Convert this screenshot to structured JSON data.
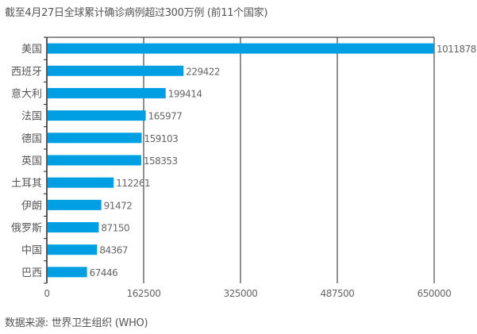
{
  "chart_data": {
    "type": "bar",
    "orientation": "horizontal",
    "title": "截至4月27日全球累计确诊病例超过300万例 (前11个国家)",
    "source": "数据来源: 世界卫生组织 (WHO)",
    "categories": [
      "美国",
      "西班牙",
      "意大利",
      "法国",
      "德国",
      "英国",
      "土耳其",
      "伊朗",
      "俄罗斯",
      "中国",
      "巴西"
    ],
    "values": [
      1011878,
      229422,
      199414,
      165977,
      159103,
      158353,
      112261,
      91472,
      87150,
      84367,
      67446
    ],
    "value_labels": [
      "1011878",
      "229422",
      "199414",
      "165977",
      "159103",
      "158353",
      "112261",
      "91472",
      "87150",
      "84367",
      "67446"
    ],
    "xlim": [
      0,
      650000
    ],
    "xticks": [
      0,
      162500,
      325000,
      487500,
      650000
    ],
    "xtick_labels": [
      "0",
      "162500",
      "325000",
      "487500",
      "650000"
    ],
    "grid": true,
    "bar_color": "#009ee2"
  }
}
